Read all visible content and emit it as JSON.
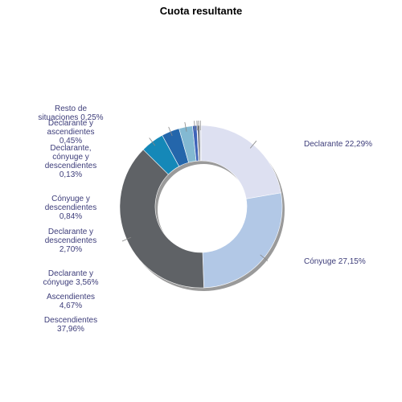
{
  "chart_data": {
    "type": "pie",
    "variant": "donut",
    "title": "Cuota resultante",
    "colors": {
      "Declarante": "#dde0f1",
      "Cónyuge": "#b2c8e6",
      "Descendientes": "#5f6266",
      "Ascendientes": "#1588b8",
      "Declarante y cónyuge": "#2466ab",
      "Declarante y descendientes": "#83b9d2",
      "Cónyuge y descendientes": "#3e63b8",
      "Declarante, cónyuge y descendientes": "#8fa3d8",
      "Declarante y ascendientes": "#6a6e74",
      "Resto de situaciones": "#c9cedb"
    },
    "slices": [
      {
        "name": "Declarante",
        "value": 22.29,
        "label_lines": [
          "Declarante 22,29%"
        ]
      },
      {
        "name": "Cónyuge",
        "value": 27.15,
        "label_lines": [
          "Cónyuge 27,15%"
        ]
      },
      {
        "name": "Descendientes",
        "value": 37.96,
        "label_lines": [
          "Descendientes",
          "37,96%"
        ]
      },
      {
        "name": "Ascendientes",
        "value": 4.67,
        "label_lines": [
          "Ascendientes",
          "4,67%"
        ]
      },
      {
        "name": "Declarante y cónyuge",
        "value": 3.56,
        "label_lines": [
          "Declarante y",
          "cónyuge 3,56%"
        ]
      },
      {
        "name": "Declarante y descendientes",
        "value": 2.7,
        "label_lines": [
          "Declarante y",
          "descendientes",
          "2,70%"
        ]
      },
      {
        "name": "Cónyuge y descendientes",
        "value": 0.84,
        "label_lines": [
          "Cónyuge y",
          "descendientes",
          "0,84%"
        ]
      },
      {
        "name": "Declarante, cónyuge y descendientes",
        "value": 0.13,
        "label_lines": [
          "Declarante,",
          "cónyuge y",
          "descendientes",
          "0,13%"
        ]
      },
      {
        "name": "Declarante y ascendientes",
        "value": 0.45,
        "label_lines": [
          "Declarante y",
          "ascendientes",
          "0,45%"
        ]
      },
      {
        "name": "Resto de situaciones",
        "value": 0.25,
        "label_lines": [
          "Resto de",
          "situaciones 0,25%"
        ]
      }
    ]
  }
}
